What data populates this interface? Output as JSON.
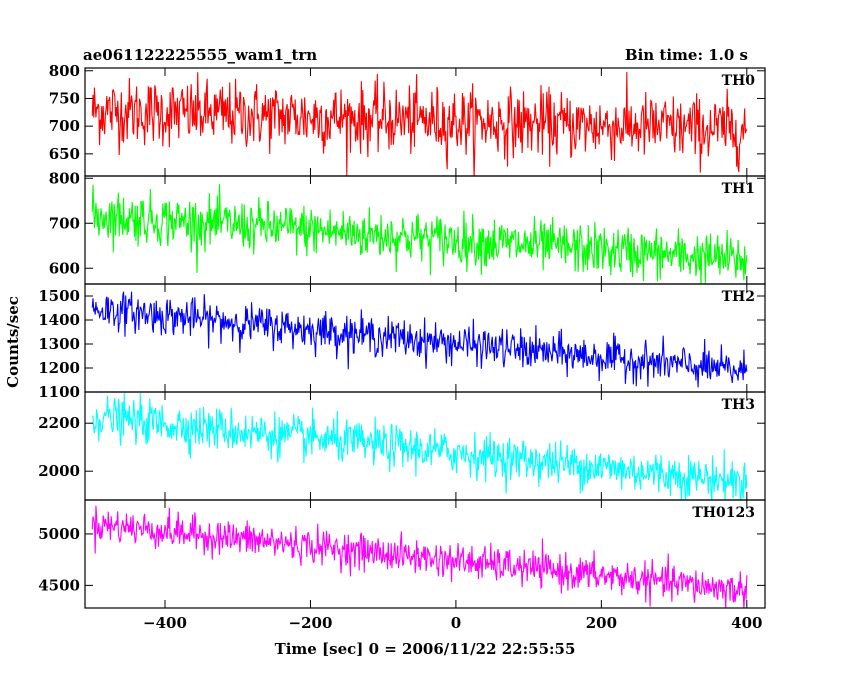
{
  "header": {
    "title": "ae061122225555_wam1_trn",
    "bin_time": "Bin time: 1.0 s"
  },
  "chart_data": {
    "type": "line",
    "xlabel": "Time [sec] 0 = 2006/11/22 22:55:55",
    "ylabel": "Counts/sec",
    "xlim": [
      -510,
      425
    ],
    "x_ticks": [
      "−400",
      "−200",
      "0",
      "200",
      "400"
    ],
    "x_tick_values": [
      -400,
      -200,
      0,
      200,
      400
    ],
    "x_start": -500,
    "x_end": 400,
    "bin_time_sec": 1.0,
    "panels": [
      {
        "name": "TH0",
        "color": "#ff0000",
        "ylim": [
          610,
          805
        ],
        "y_ticks": [
          650,
          700,
          750,
          800
        ],
        "trend_start": 728,
        "trend_end": 693,
        "noise_sigma": 30
      },
      {
        "name": "TH1",
        "color": "#00ff00",
        "ylim": [
          565,
          805
        ],
        "y_ticks": [
          600,
          700,
          800
        ],
        "trend_start": 718,
        "trend_end": 618,
        "noise_sigma": 28
      },
      {
        "name": "TH2",
        "color": "#0000ff",
        "ylim": [
          1100,
          1550
        ],
        "y_ticks": [
          1100,
          1200,
          1300,
          1400,
          1500
        ],
        "trend_start": 1448,
        "trend_end": 1185,
        "noise_sigma": 40
      },
      {
        "name": "TH3",
        "color": "#00ffff",
        "ylim": [
          1880,
          2330
        ],
        "y_ticks": [
          2000,
          2200
        ],
        "trend_start": 2228,
        "trend_end": 1955,
        "noise_sigma": 45
      },
      {
        "name": "TH0123",
        "color": "#ff00ff",
        "ylim": [
          4280,
          5330
        ],
        "y_ticks": [
          4500,
          5000
        ],
        "trend_start": 5100,
        "trend_end": 4450,
        "noise_sigma": 85
      }
    ]
  }
}
